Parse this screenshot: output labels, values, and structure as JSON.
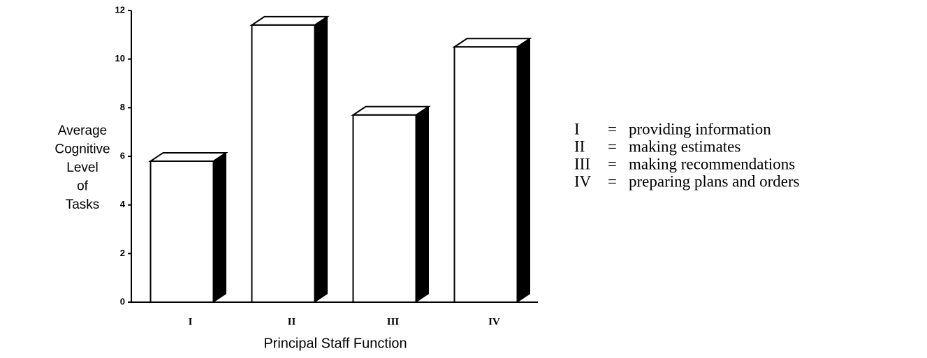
{
  "chart_data": {
    "type": "bar3d",
    "categories": [
      "I",
      "II",
      "III",
      "IV"
    ],
    "values": [
      5.8,
      11.4,
      7.7,
      10.5
    ],
    "color": "#ffffff",
    "side_color": "#000000",
    "ylim": [
      0,
      12
    ],
    "yticks": [
      0,
      2,
      4,
      6,
      8,
      10,
      12
    ],
    "ylabel": [
      "Average",
      "Cognitive",
      "Level",
      "of",
      "Tasks"
    ],
    "xlabel": "Principal Staff Function",
    "legend": {
      "separator": "=",
      "entries": [
        {
          "key": "I",
          "text": "providing information"
        },
        {
          "key": "II",
          "text": "making estimates"
        },
        {
          "key": "III",
          "text": "making recommendations"
        },
        {
          "key": "IV",
          "text": "preparing plans and orders"
        }
      ]
    }
  }
}
